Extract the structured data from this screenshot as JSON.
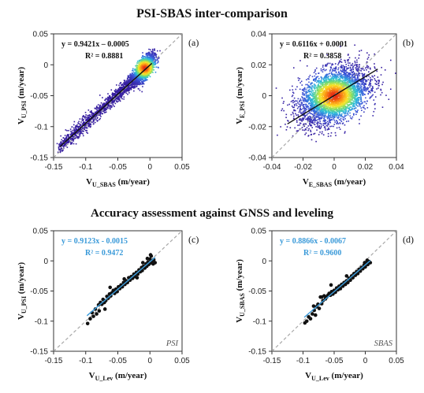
{
  "headings": {
    "top": "PSI-SBAS inter-comparison",
    "bottom": "Accuracy assessment against GNSS and leveling"
  },
  "colors": {
    "blue_fit": "#3a9ad9",
    "black_fit": "#111111",
    "identity": "#a8a8a8",
    "points": "#111111"
  },
  "chart_data": [
    {
      "id": "a",
      "type": "scatter",
      "density": true,
      "panel_label": "(a)",
      "xlabel": {
        "main": "V",
        "sub": "U_SBAS",
        "unit": " (m/year)"
      },
      "ylabel": {
        "main": "V",
        "sub": "U_PSI",
        "unit": " (m/year)"
      },
      "xlim": [
        -0.15,
        0.05
      ],
      "ylim": [
        -0.15,
        0.05
      ],
      "xticks": [
        -0.15,
        -0.1,
        -0.05,
        0,
        0.05
      ],
      "yticks": [
        -0.15,
        -0.1,
        -0.05,
        0,
        0.05
      ],
      "xtick_labels": [
        "-0.15",
        "-0.1",
        "-0.05",
        "0",
        "0.05"
      ],
      "ytick_labels": [
        "-0.15",
        "-0.1",
        "-0.05",
        "0",
        "0.05"
      ],
      "fit": {
        "slope": 0.9421,
        "intercept": -0.0005,
        "range": [
          -0.14,
          0.003
        ],
        "color": "#111111"
      },
      "equation": "y = 0.9421x – 0.0005",
      "r2": "R² = 0.8881",
      "equation_color": "#111111",
      "cloud": {
        "cx": -0.008,
        "cy": -0.0055,
        "xmin": -0.14,
        "xmax": 0.01,
        "spread": 0.012
      },
      "method_label": ""
    },
    {
      "id": "b",
      "type": "scatter",
      "density": true,
      "panel_label": "(b)",
      "xlabel": {
        "main": "V",
        "sub": "E_SBAS",
        "unit": " (m/year)"
      },
      "ylabel": {
        "main": "V",
        "sub": "E_PSI",
        "unit": " (m/year)"
      },
      "xlim": [
        -0.04,
        0.04
      ],
      "ylim": [
        -0.04,
        0.04
      ],
      "xticks": [
        -0.04,
        -0.02,
        0,
        0.02,
        0.04
      ],
      "yticks": [
        -0.04,
        -0.02,
        0,
        0.02,
        0.04
      ],
      "xtick_labels": [
        "-0.04",
        "-0.02",
        "0",
        "0.02",
        "0.04"
      ],
      "ytick_labels": [
        "-0.04",
        "-0.02",
        "0",
        "0.02",
        "0.04"
      ],
      "fit": {
        "slope": 0.6116,
        "intercept": 0.0001,
        "range": [
          -0.03,
          0.028
        ],
        "color": "#111111"
      },
      "equation": "y = 0.6116x + 0.0001",
      "r2": "R² = 0.3858",
      "equation_color": "#111111",
      "cloud": {
        "cx": 0.0,
        "cy": 0.0,
        "sx": 0.011,
        "sy": 0.0085
      },
      "method_label": ""
    },
    {
      "id": "c",
      "type": "scatter",
      "density": false,
      "panel_label": "(c)",
      "xlabel": {
        "main": "V",
        "sub": "U_Lev",
        "unit": " (m/year)"
      },
      "ylabel": {
        "main": "V",
        "sub": "U_PSI",
        "unit": " (m/year)"
      },
      "xlim": [
        -0.15,
        0.05
      ],
      "ylim": [
        -0.15,
        0.05
      ],
      "xticks": [
        -0.15,
        -0.1,
        -0.05,
        0,
        0.05
      ],
      "yticks": [
        -0.15,
        -0.1,
        -0.05,
        0,
        0.05
      ],
      "xtick_labels": [
        "-0.15",
        "-0.1",
        "-0.05",
        "0",
        "0.05"
      ],
      "ytick_labels": [
        "-0.15",
        "-0.1",
        "-0.05",
        "0",
        "0.05"
      ],
      "fit": {
        "slope": 0.9123,
        "intercept": -0.0015,
        "range": [
          -0.098,
          0.008
        ],
        "color": "#3a9ad9"
      },
      "equation": "y = 0.9123x - 0.0015",
      "r2": "R² = 0.9472",
      "equation_color": "#3a9ad9",
      "points": [
        [
          -0.097,
          -0.104
        ],
        [
          -0.093,
          -0.096
        ],
        [
          -0.09,
          -0.086
        ],
        [
          -0.088,
          -0.092
        ],
        [
          -0.085,
          -0.08
        ],
        [
          -0.083,
          -0.088
        ],
        [
          -0.08,
          -0.073
        ],
        [
          -0.079,
          -0.083
        ],
        [
          -0.077,
          -0.069
        ],
        [
          -0.075,
          -0.072
        ],
        [
          -0.073,
          -0.064
        ],
        [
          -0.071,
          -0.069
        ],
        [
          -0.069,
          -0.066
        ],
        [
          -0.067,
          -0.059
        ],
        [
          -0.065,
          -0.062
        ],
        [
          -0.063,
          -0.055
        ],
        [
          -0.061,
          -0.058
        ],
        [
          -0.059,
          -0.053
        ],
        [
          -0.057,
          -0.049
        ],
        [
          -0.055,
          -0.054
        ],
        [
          -0.053,
          -0.047
        ],
        [
          -0.051,
          -0.051
        ],
        [
          -0.049,
          -0.043
        ],
        [
          -0.047,
          -0.046
        ],
        [
          -0.045,
          -0.04
        ],
        [
          -0.043,
          -0.043
        ],
        [
          -0.041,
          -0.036
        ],
        [
          -0.039,
          -0.039
        ],
        [
          -0.037,
          -0.033
        ],
        [
          -0.035,
          -0.036
        ],
        [
          -0.033,
          -0.028
        ],
        [
          -0.031,
          -0.032
        ],
        [
          -0.029,
          -0.026
        ],
        [
          -0.027,
          -0.029
        ],
        [
          -0.025,
          -0.022
        ],
        [
          -0.023,
          -0.026
        ],
        [
          -0.021,
          -0.019
        ],
        [
          -0.019,
          -0.022
        ],
        [
          -0.017,
          -0.015
        ],
        [
          -0.015,
          -0.018
        ],
        [
          -0.013,
          -0.011
        ],
        [
          -0.012,
          -0.016
        ],
        [
          -0.01,
          -0.009
        ],
        [
          -0.008,
          -0.012
        ],
        [
          -0.006,
          -0.005
        ],
        [
          -0.005,
          -0.009
        ],
        [
          -0.003,
          -0.002
        ],
        [
          -0.002,
          -0.006
        ],
        [
          0.0,
          0.003
        ],
        [
          0.0,
          -0.004
        ],
        [
          0.002,
          0.008
        ],
        [
          0.003,
          -0.001
        ],
        [
          0.005,
          -0.005
        ],
        [
          0.006,
          0.002
        ],
        [
          0.008,
          -0.003
        ],
        [
          0.001,
          0.01
        ],
        [
          -0.004,
          0.004
        ],
        [
          -0.062,
          -0.044
        ],
        [
          -0.04,
          -0.03
        ],
        [
          -0.07,
          -0.08
        ],
        [
          -0.02,
          -0.028
        ],
        [
          -0.011,
          -0.003
        ]
      ],
      "method_label": "PSI"
    },
    {
      "id": "d",
      "type": "scatter",
      "density": false,
      "panel_label": "(d)",
      "xlabel": {
        "main": "V",
        "sub": "U_Lev",
        "unit": " (m/year)"
      },
      "ylabel": {
        "main": "V",
        "sub": "U_SBAS",
        "unit": " (m/year)"
      },
      "xlim": [
        -0.15,
        0.05
      ],
      "ylim": [
        -0.15,
        0.05
      ],
      "xticks": [
        -0.15,
        -0.1,
        -0.05,
        0,
        0.05
      ],
      "yticks": [
        -0.15,
        -0.1,
        -0.05,
        0,
        0.05
      ],
      "xtick_labels": [
        "-0.15",
        "-0.1",
        "-0.05",
        "0",
        "0.05"
      ],
      "ytick_labels": [
        "-0.15",
        "-0.1",
        "-0.05",
        "0",
        "0.05"
      ],
      "fit": {
        "slope": 0.8866,
        "intercept": -0.0067,
        "range": [
          -0.098,
          0.008
        ],
        "color": "#3a9ad9"
      },
      "equation": "y = 0.8866x - 0.0067",
      "r2": "R² = 0.9600",
      "equation_color": "#3a9ad9",
      "points": [
        [
          -0.097,
          -0.103
        ],
        [
          -0.094,
          -0.1
        ],
        [
          -0.091,
          -0.093
        ],
        [
          -0.088,
          -0.096
        ],
        [
          -0.085,
          -0.088
        ],
        [
          -0.082,
          -0.082
        ],
        [
          -0.08,
          -0.09
        ],
        [
          -0.078,
          -0.076
        ],
        [
          -0.076,
          -0.072
        ],
        [
          -0.074,
          -0.079
        ],
        [
          -0.072,
          -0.06
        ],
        [
          -0.07,
          -0.071
        ],
        [
          -0.068,
          -0.066
        ],
        [
          -0.066,
          -0.058
        ],
        [
          -0.064,
          -0.063
        ],
        [
          -0.062,
          -0.06
        ],
        [
          -0.06,
          -0.057
        ],
        [
          -0.058,
          -0.054
        ],
        [
          -0.056,
          -0.057
        ],
        [
          -0.054,
          -0.051
        ],
        [
          -0.052,
          -0.055
        ],
        [
          -0.05,
          -0.049
        ],
        [
          -0.048,
          -0.052
        ],
        [
          -0.046,
          -0.045
        ],
        [
          -0.044,
          -0.048
        ],
        [
          -0.042,
          -0.042
        ],
        [
          -0.04,
          -0.046
        ],
        [
          -0.038,
          -0.039
        ],
        [
          -0.036,
          -0.042
        ],
        [
          -0.034,
          -0.036
        ],
        [
          -0.032,
          -0.039
        ],
        [
          -0.03,
          -0.033
        ],
        [
          -0.028,
          -0.036
        ],
        [
          -0.026,
          -0.029
        ],
        [
          -0.024,
          -0.032
        ],
        [
          -0.022,
          -0.025
        ],
        [
          -0.02,
          -0.028
        ],
        [
          -0.018,
          -0.021
        ],
        [
          -0.016,
          -0.024
        ],
        [
          -0.014,
          -0.018
        ],
        [
          -0.012,
          -0.021
        ],
        [
          -0.01,
          -0.014
        ],
        [
          -0.008,
          -0.017
        ],
        [
          -0.006,
          -0.011
        ],
        [
          -0.004,
          -0.013
        ],
        [
          -0.002,
          -0.007
        ],
        [
          0.0,
          -0.01
        ],
        [
          0.002,
          -0.004
        ],
        [
          0.004,
          -0.006
        ],
        [
          0.006,
          -0.001
        ],
        [
          0.008,
          -0.003
        ],
        [
          0.003,
          0.001
        ],
        [
          -0.001,
          -0.003
        ],
        [
          -0.07,
          -0.06
        ],
        [
          -0.055,
          -0.04
        ],
        [
          -0.083,
          -0.075
        ],
        [
          -0.03,
          -0.025
        ]
      ],
      "method_label": "SBAS"
    }
  ]
}
